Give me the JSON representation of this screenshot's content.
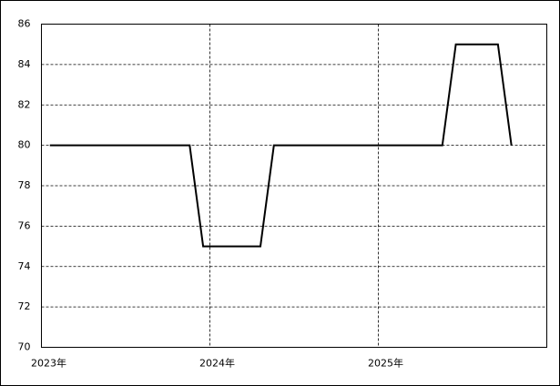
{
  "chart_data": {
    "type": "line",
    "x": [
      2023.05,
      2023.88,
      2023.96,
      2024.3,
      2024.38,
      2025.38,
      2025.46,
      2025.71,
      2025.79
    ],
    "series": [
      {
        "color": "#000000",
        "values": [
          80,
          80,
          75,
          75,
          80,
          80,
          85,
          85,
          80
        ]
      }
    ],
    "xlim": [
      2023,
      2026
    ],
    "xticks": [
      {
        "value": 2023,
        "label": "2023年"
      },
      {
        "value": 2024,
        "label": "2024年"
      },
      {
        "value": 2025,
        "label": "2025年"
      }
    ],
    "ylim": [
      70,
      86
    ],
    "yticks": [
      70,
      72,
      74,
      76,
      78,
      80,
      82,
      84,
      86
    ],
    "grid": true
  }
}
